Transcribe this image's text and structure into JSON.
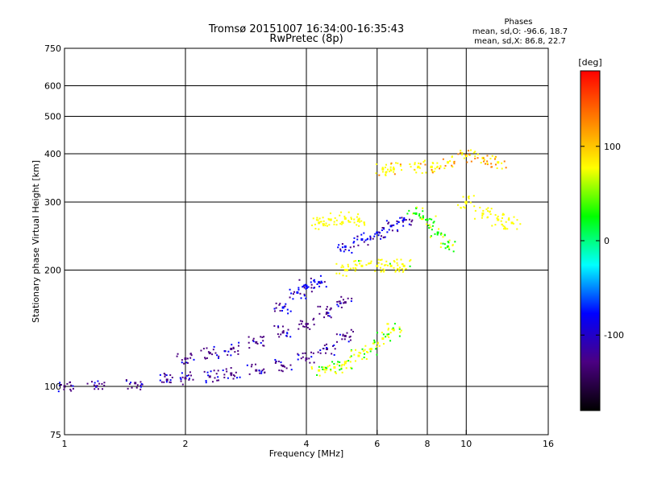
{
  "chart_data": {
    "type": "scatter",
    "title": "Tromsø 20151007 16:34:00-16:35:43",
    "subtitle": "RwPretec (8p)",
    "xlabel": "Frequency [MHz]",
    "ylabel": "Stationary phase Virtual Height [km]",
    "x_scale": "log",
    "y_scale": "log",
    "xlim": [
      1,
      16
    ],
    "ylim": [
      75,
      750
    ],
    "x_ticks": [
      1,
      2,
      4,
      6,
      8,
      10,
      16
    ],
    "x_tick_labels": [
      "1",
      "2",
      "4",
      "6",
      "8",
      "10",
      "16"
    ],
    "y_ticks": [
      75,
      100,
      200,
      300,
      400,
      500,
      600,
      750
    ],
    "y_tick_labels": [
      "75",
      "100",
      "200",
      "300",
      "400",
      "500",
      "600",
      "750"
    ],
    "grid_x": [
      2,
      4,
      6,
      8,
      10
    ],
    "grid_y": [
      100,
      200,
      300,
      400,
      500,
      600
    ],
    "grid": true,
    "legend_position": "top-right",
    "phases_title": "Phases",
    "phases_lines": [
      "mean, sd,O: -96.6, 18.7",
      "mean, sd,X: 86.8, 22.7"
    ],
    "colorbar": {
      "label": "[deg]",
      "range": [
        -180,
        180
      ],
      "ticks": [
        100,
        0,
        -100
      ],
      "tick_labels": [
        "100",
        "0",
        "-100"
      ],
      "colors": [
        "#ff0000",
        "#ff8000",
        "#ffff00",
        "#00ff00",
        "#00ffff",
        "#0000ff",
        "#4b0082",
        "#000000"
      ]
    },
    "traces": [
      {
        "name": "",
        "phase": -110,
        "points": [
          [
            1.0,
            100
          ],
          [
            1.2,
            100
          ],
          [
            1.5,
            102
          ],
          [
            1.8,
            104
          ],
          [
            2.0,
            105
          ],
          [
            2.3,
            106
          ],
          [
            2.6,
            108
          ],
          [
            3.0,
            110
          ],
          [
            3.5,
            113
          ],
          [
            4.0,
            118
          ],
          [
            4.5,
            125
          ],
          [
            5.0,
            135
          ]
        ]
      },
      {
        "name": "",
        "phase": -115,
        "points": [
          [
            2.0,
            118
          ],
          [
            2.3,
            122
          ],
          [
            2.6,
            125
          ],
          [
            3.0,
            130
          ],
          [
            3.5,
            138
          ],
          [
            4.0,
            145
          ],
          [
            4.5,
            155
          ],
          [
            5.0,
            165
          ]
        ]
      },
      {
        "name": "",
        "phase": -100,
        "points": [
          [
            3.5,
            160
          ],
          [
            3.8,
            175
          ],
          [
            4.0,
            182
          ],
          [
            4.3,
            186
          ]
        ]
      },
      {
        "name": "",
        "phase": 60,
        "points": [
          [
            4.3,
            110
          ],
          [
            4.7,
            112
          ],
          [
            5.0,
            115
          ],
          [
            5.4,
            120
          ],
          [
            5.8,
            125
          ],
          [
            6.2,
            133
          ],
          [
            6.6,
            140
          ]
        ]
      },
      {
        "name": "",
        "phase": 70,
        "points": [
          [
            4.3,
            265
          ],
          [
            4.6,
            270
          ],
          [
            5.0,
            272
          ],
          [
            5.4,
            270
          ]
        ]
      },
      {
        "name": "",
        "phase": 70,
        "points": [
          [
            5.0,
            200
          ],
          [
            5.5,
            205
          ],
          [
            6.0,
            205
          ],
          [
            6.5,
            205
          ],
          [
            7.0,
            205
          ]
        ]
      },
      {
        "name": "",
        "phase": 90,
        "points": [
          [
            6.2,
            365
          ],
          [
            6.6,
            365
          ],
          [
            7.6,
            370
          ],
          [
            8.2,
            370
          ]
        ]
      },
      {
        "name": "",
        "phase": 50,
        "points": [
          [
            7.5,
            280
          ],
          [
            8.0,
            270
          ],
          [
            8.5,
            250
          ],
          [
            9.0,
            230
          ]
        ]
      },
      {
        "name": "",
        "phase": 100,
        "points": [
          [
            9.0,
            380
          ],
          [
            10.0,
            395
          ],
          [
            11.0,
            390
          ],
          [
            12.0,
            380
          ]
        ]
      },
      {
        "name": "",
        "phase": 80,
        "points": [
          [
            10.0,
            300
          ],
          [
            11.0,
            280
          ],
          [
            12.0,
            270
          ],
          [
            13.0,
            265
          ]
        ]
      },
      {
        "name": "",
        "phase": -100,
        "points": [
          [
            5.0,
            230
          ],
          [
            5.5,
            240
          ],
          [
            6.0,
            250
          ],
          [
            6.5,
            260
          ],
          [
            7.0,
            270
          ]
        ]
      }
    ]
  }
}
